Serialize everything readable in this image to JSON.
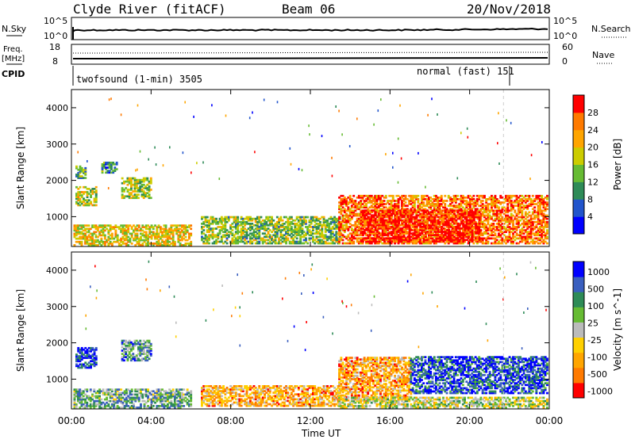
{
  "header": {
    "station": "Clyde River (fitACF)",
    "beam": "Beam 06",
    "date": "20/Nov/2018"
  },
  "strips": {
    "nsky_label": "N.Sky",
    "nsky_ticks": [
      "10^5",
      "10^0"
    ],
    "nsearch_label": "N.Search",
    "nsearch_ticks": [
      "10^5",
      "10^0"
    ],
    "freq_label_1": "Freq.",
    "freq_label_2": "[MHz]",
    "freq_ticks": [
      "18",
      "8"
    ],
    "nave_label": "Nave",
    "nave_ticks": [
      "60",
      "0"
    ],
    "cpid_label": "CPID",
    "cpid_mode_1": "twofsound (1-min) 3505",
    "cpid_mode_2": "normal (fast) 151"
  },
  "colors": {
    "power_scale": [
      "#0000ff",
      "#2255cc",
      "#2e8b57",
      "#66bb33",
      "#cccc00",
      "#ffa500",
      "#ff7a00",
      "#ff0000"
    ],
    "velocity_scale": [
      "#0000ff",
      "#3a5fbf",
      "#2e8b57",
      "#66bb33",
      "#bbbbbb",
      "#ffd000",
      "#ffa500",
      "#ff7a00",
      "#ff0000"
    ]
  },
  "chart_data": [
    {
      "type": "heatmap",
      "title": "Power",
      "ylabel": "Slant Range [km]",
      "xlabel": "Time UT",
      "x_ticks": [
        "00:00",
        "04:00",
        "08:00",
        "12:00",
        "16:00",
        "20:00",
        "00:00"
      ],
      "xlim_hours": [
        0,
        24
      ],
      "y_ticks": [
        1000,
        2000,
        3000,
        4000
      ],
      "ylim": [
        180,
        4500
      ],
      "colorbar_label": "Power [dB]",
      "colorbar_ticks": [
        "4",
        "8",
        "12",
        "16",
        "20",
        "24",
        "28"
      ],
      "regions": [
        {
          "t0": 0.2,
          "t1": 1.2,
          "r0": 1300,
          "r1": 1800,
          "level": 0.55
        },
        {
          "t0": 0.2,
          "t1": 0.7,
          "r0": 2050,
          "r1": 2400,
          "level": 0.4
        },
        {
          "t0": 1.5,
          "t1": 2.3,
          "r0": 2200,
          "r1": 2500,
          "level": 0.3
        },
        {
          "t0": 2.5,
          "t1": 4.0,
          "r0": 1500,
          "r1": 2050,
          "level": 0.5
        },
        {
          "t0": 0.1,
          "t1": 6.0,
          "r0": 200,
          "r1": 750,
          "level": 0.6
        },
        {
          "t0": 6.5,
          "t1": 13.5,
          "r0": 250,
          "r1": 1000,
          "level": 0.45
        },
        {
          "t0": 13.4,
          "t1": 23.9,
          "r0": 250,
          "r1": 1600,
          "level": 0.8
        },
        {
          "t0": 14.5,
          "t1": 20.5,
          "r0": 300,
          "r1": 1200,
          "level": 0.95
        }
      ]
    },
    {
      "type": "heatmap",
      "title": "Velocity",
      "ylabel": "Slant Range [km]",
      "xlabel": "Time UT",
      "x_ticks": [
        "00:00",
        "04:00",
        "08:00",
        "12:00",
        "16:00",
        "20:00",
        "00:00"
      ],
      "xlim_hours": [
        0,
        24
      ],
      "y_ticks": [
        1000,
        2000,
        3000,
        4000
      ],
      "ylim": [
        180,
        4500
      ],
      "colorbar_label": "Velocity [m s^-1]",
      "colorbar_ticks": [
        "1000",
        "500",
        "100",
        "25",
        "-25",
        "-100",
        "-500",
        "-1000"
      ],
      "regions": [
        {
          "t0": 0.2,
          "t1": 1.2,
          "r0": 1300,
          "r1": 1850,
          "level": 0.1
        },
        {
          "t0": 2.5,
          "t1": 4.0,
          "r0": 1500,
          "r1": 2050,
          "level": 0.3
        },
        {
          "t0": 0.1,
          "t1": 6.0,
          "r0": 200,
          "r1": 700,
          "level": 0.35
        },
        {
          "t0": 6.5,
          "t1": 13.5,
          "r0": 250,
          "r1": 800,
          "level": 0.7
        },
        {
          "t0": 13.4,
          "t1": 17.0,
          "r0": 400,
          "r1": 1600,
          "level": 0.72
        },
        {
          "t0": 17.0,
          "t1": 23.9,
          "r0": 600,
          "r1": 1600,
          "level": 0.15
        },
        {
          "t0": 13.4,
          "t1": 23.9,
          "r0": 200,
          "r1": 500,
          "level": 0.5
        }
      ]
    }
  ]
}
